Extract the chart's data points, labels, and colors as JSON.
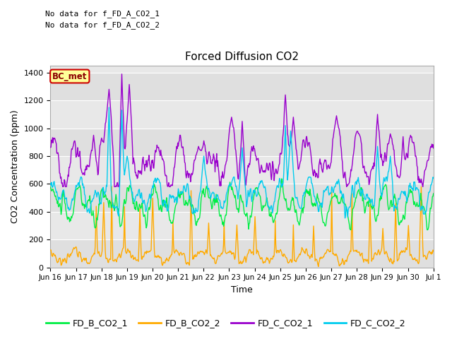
{
  "title": "Forced Diffusion CO2",
  "ylabel": "CO2 Concentration (ppm)",
  "xlabel": "Time",
  "no_data_text_1": "No data for f_FD_A_CO2_1",
  "no_data_text_2": "No data for f_FD_A_CO2_2",
  "bc_met_label": "BC_met",
  "colors": {
    "FD_B_CO2_1": "#00ee44",
    "FD_B_CO2_2": "#ffaa00",
    "FD_C_CO2_1": "#9900cc",
    "FD_C_CO2_2": "#00ccee"
  },
  "ylim": [
    0,
    1450
  ],
  "yticks": [
    0,
    200,
    400,
    600,
    800,
    1000,
    1200,
    1400
  ],
  "bg_color": "#e8e8e8",
  "fig_bg": "#ffffff",
  "grid_color": "#ffffff",
  "x_tick_labels": [
    "Jun 16",
    "Jun 17",
    "Jun 18",
    "Jun 19",
    "Jun 20",
    "Jun 21",
    "Jun 22",
    "Jun 23",
    "Jun 24",
    "Jun 25",
    "Jun 26",
    "Jun 27",
    "Jun 28",
    "Jun 29",
    "Jun 30",
    "Jul 1"
  ],
  "n_days": 15,
  "pts_per_day": 48,
  "linewidth": 1.0
}
